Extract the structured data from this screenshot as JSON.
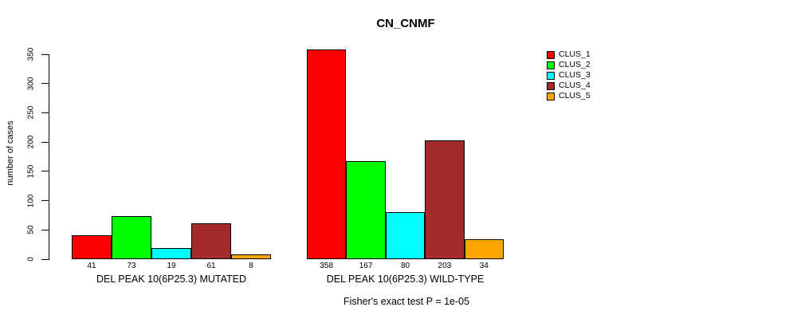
{
  "title": "CN_CNMF",
  "chart_data": {
    "type": "bar",
    "title": "CN_CNMF",
    "ylabel": "number of cases",
    "ylim": [
      0,
      350
    ],
    "yticks": [
      0,
      50,
      100,
      150,
      200,
      250,
      300,
      350
    ],
    "grid": false,
    "legend_position": "right-outside",
    "bar_border_color": "#000000",
    "categories": [
      "DEL PEAK 10(6P25.3) MUTATED",
      "DEL PEAK 10(6P25.3) WILD-TYPE"
    ],
    "series": [
      {
        "name": "CLUS_1",
        "color": "#FF0000",
        "values": [
          41,
          358
        ]
      },
      {
        "name": "CLUS_2",
        "color": "#00FF00",
        "values": [
          73,
          167
        ]
      },
      {
        "name": "CLUS_3",
        "color": "#00FFFF",
        "values": [
          19,
          80
        ]
      },
      {
        "name": "CLUS_4",
        "color": "#A52A2A",
        "values": [
          61,
          203
        ]
      },
      {
        "name": "CLUS_5",
        "color": "#FFA500",
        "values": [
          8,
          34
        ]
      }
    ],
    "bar_value_labels": [
      [
        41,
        73,
        19,
        61,
        8
      ],
      [
        358,
        167,
        80,
        203,
        34
      ]
    ],
    "caption": "Fisher's exact test P = 1e-05"
  }
}
